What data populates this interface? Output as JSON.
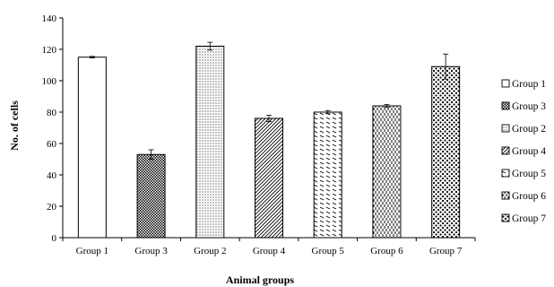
{
  "chart_data": {
    "type": "bar",
    "categories": [
      "Group 1",
      "Group 3",
      "Group 2",
      "Group 4",
      "Group 5",
      "Group 6",
      "Group 7"
    ],
    "values": [
      115,
      53,
      122,
      76,
      80,
      84,
      109
    ],
    "error": [
      0.5,
      3,
      2.5,
      2,
      1,
      0.8,
      8
    ],
    "ylabel": "No. of cells",
    "xlabel": "Animal groups",
    "ylim": [
      0,
      140
    ],
    "yticks": [
      0,
      20,
      40,
      60,
      80,
      100,
      120,
      140
    ],
    "grid": false,
    "legend": {
      "position": "right",
      "entries": [
        "Group 1",
        "Group 3",
        "Group 2",
        "Group 4",
        "Group 5",
        "Group 6",
        "Group 7"
      ]
    },
    "fill_patterns": [
      "white",
      "checker-dense",
      "dots-fine",
      "diagonal-dense",
      "diagonal-wide",
      "vertical-dashes",
      "dots-large"
    ],
    "colors": {
      "bar_stroke": "#000000",
      "pattern": "#000000",
      "background": "#ffffff"
    }
  }
}
